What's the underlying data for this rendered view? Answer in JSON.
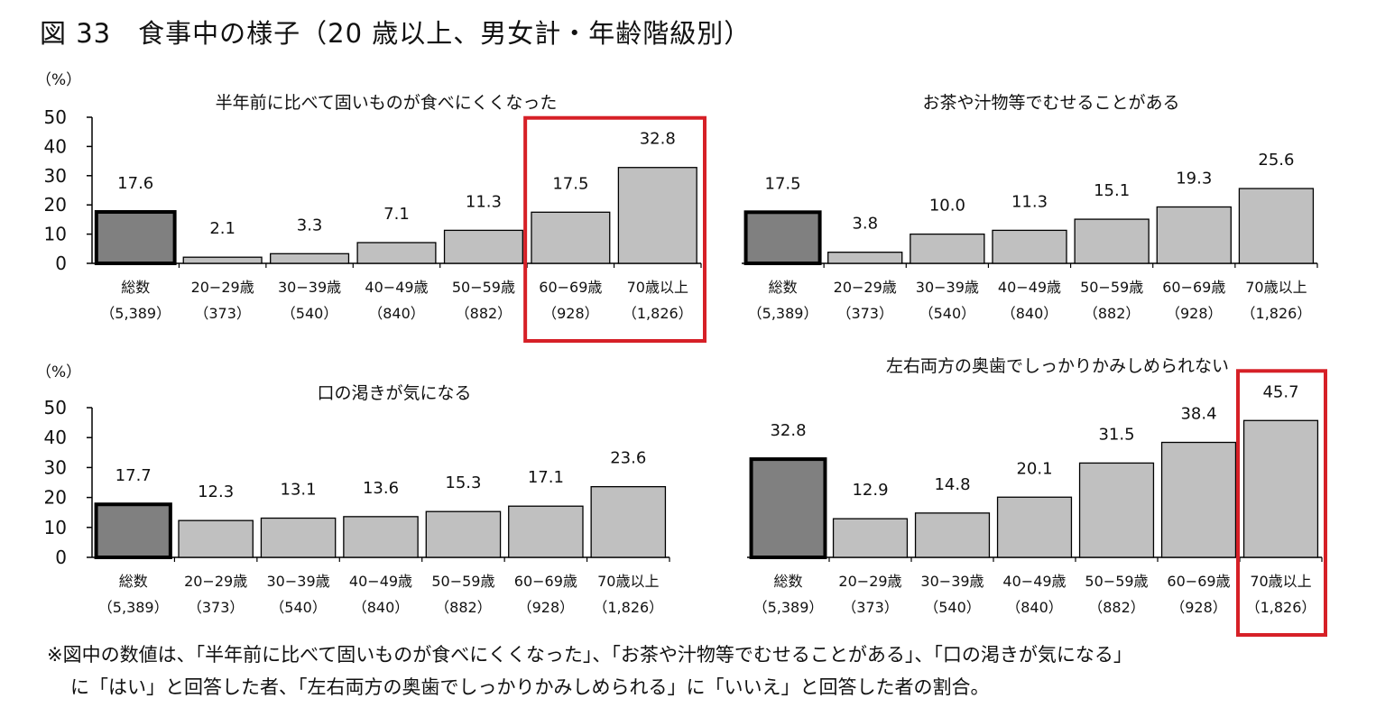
{
  "figure_title": "図 33　食事中の様子（20 歳以上、男女計・年齢階級別）",
  "y_unit": "（%）",
  "highlight_color": "#d62027",
  "colors": {
    "total_bar": "#808080",
    "age_bar": "#c0c0c0",
    "bar_edge": "#000000"
  },
  "chart_data": [
    {
      "type": "bar",
      "title": "半年前に比べて固いものが食べにくくなった",
      "categories": [
        "総数",
        "20−29歳",
        "30−39歳",
        "40−49歳",
        "50−59歳",
        "60−69歳",
        "70歳以上"
      ],
      "sample_sizes": [
        "（5,389）",
        "（373）",
        "（540）",
        "（840）",
        "（882）",
        "（928）",
        "（1,826）"
      ],
      "values": [
        17.6,
        2.1,
        3.3,
        7.1,
        11.3,
        17.5,
        32.8
      ],
      "value_labels": [
        "17.6",
        "2.1",
        "3.3",
        "7.1",
        "11.3",
        "17.5",
        "32.8"
      ],
      "ylim": [
        0,
        50
      ],
      "yticks": [
        "0",
        "10",
        "20",
        "30",
        "40",
        "50"
      ],
      "highlighted_categories": [
        "60−69歳",
        "70歳以上"
      ]
    },
    {
      "type": "bar",
      "title": "お茶や汁物等でむせることがある",
      "categories": [
        "総数",
        "20−29歳",
        "30−39歳",
        "40−49歳",
        "50−59歳",
        "60−69歳",
        "70歳以上"
      ],
      "sample_sizes": [
        "（5,389）",
        "（373）",
        "（540）",
        "（840）",
        "（882）",
        "（928）",
        "（1,826）"
      ],
      "values": [
        17.5,
        3.8,
        10.0,
        11.3,
        15.1,
        19.3,
        25.6
      ],
      "value_labels": [
        "17.5",
        "3.8",
        "10.0",
        "11.3",
        "15.1",
        "19.3",
        "25.6"
      ],
      "ylim": [
        0,
        50
      ],
      "highlighted_categories": []
    },
    {
      "type": "bar",
      "title": "口の渇きが気になる",
      "categories": [
        "総数",
        "20−29歳",
        "30−39歳",
        "40−49歳",
        "50−59歳",
        "60−69歳",
        "70歳以上"
      ],
      "sample_sizes": [
        "（5,389）",
        "（373）",
        "（540）",
        "（840）",
        "（882）",
        "（928）",
        "（1,826）"
      ],
      "values": [
        17.7,
        12.3,
        13.1,
        13.6,
        15.3,
        17.1,
        23.6
      ],
      "value_labels": [
        "17.7",
        "12.3",
        "13.1",
        "13.6",
        "15.3",
        "17.1",
        "23.6"
      ],
      "ylim": [
        0,
        50
      ],
      "yticks": [
        "0",
        "10",
        "20",
        "30",
        "40",
        "50"
      ],
      "highlighted_categories": []
    },
    {
      "type": "bar",
      "title": "左右両方の奥歯でしっかりかみしめられない",
      "categories": [
        "総数",
        "20−29歳",
        "30−39歳",
        "40−49歳",
        "50−59歳",
        "60−69歳",
        "70歳以上"
      ],
      "sample_sizes": [
        "（5,389）",
        "（373）",
        "（540）",
        "（840）",
        "（882）",
        "（928）",
        "（1,826）"
      ],
      "values": [
        32.8,
        12.9,
        14.8,
        20.1,
        31.5,
        38.4,
        45.7
      ],
      "value_labels": [
        "32.8",
        "12.9",
        "14.8",
        "20.1",
        "31.5",
        "38.4",
        "45.7"
      ],
      "ylim": [
        0,
        50
      ],
      "highlighted_categories": [
        "70歳以上"
      ]
    }
  ],
  "note": {
    "line1": "※図中の数値は、「半年前に比べて固いものが食べにくくなった」、「お茶や汁物等でむせることがある」、「口の渇きが気になる」",
    "line2": "に「はい」と回答した者、「左右両方の奥歯でしっかりかみしめられる」に「いいえ」と回答した者の割合。"
  }
}
